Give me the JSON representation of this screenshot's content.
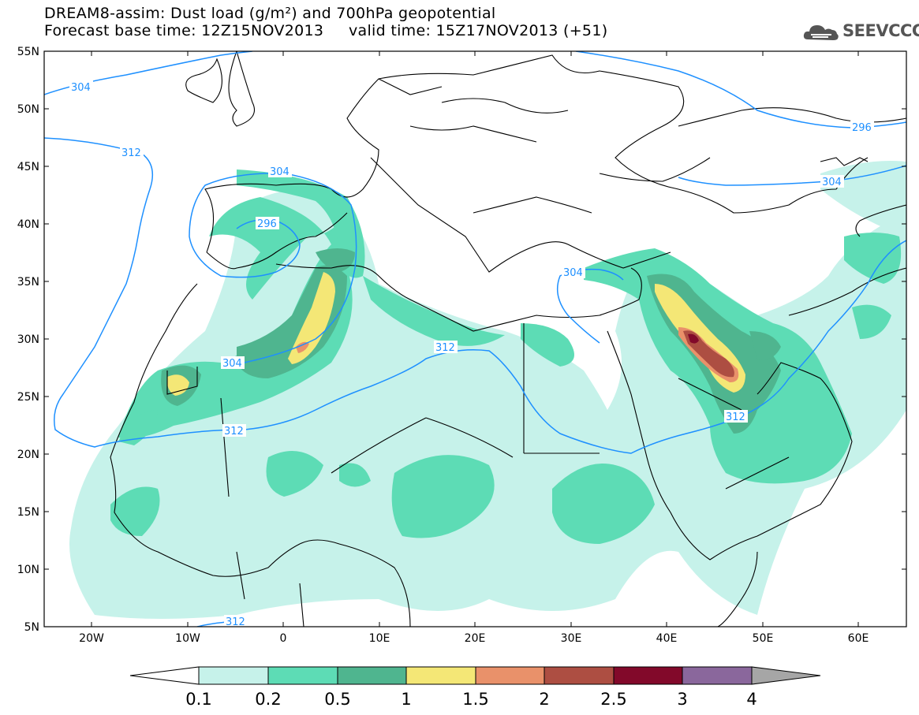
{
  "title": {
    "line1": "DREAM8-assim: Dust load (g/m²) and 700hPa geopotential",
    "line2": "Forecast base time: 12Z15NOV2013     valid time: 15Z17NOV2013 (+51)"
  },
  "logo": {
    "text": "SEEVCCC",
    "icon": "cloud-icon"
  },
  "map": {
    "lat_labels": [
      "55N",
      "50N",
      "45N",
      "40N",
      "35N",
      "30N",
      "25N",
      "20N",
      "15N",
      "10N",
      "5N"
    ],
    "lon_labels": [
      "20W",
      "10W",
      "0",
      "10E",
      "20E",
      "30E",
      "40E",
      "50E",
      "60E"
    ],
    "contour_labels": [
      "304",
      "296",
      "312",
      "304",
      "296",
      "304",
      "304",
      "312",
      "312",
      "304",
      "312",
      "312"
    ],
    "contour_color": "#1e90ff"
  },
  "colorbar": {
    "colors": [
      "#c6f2ea",
      "#5ddcb5",
      "#4fb58f",
      "#f4e776",
      "#e9916a",
      "#ad4e42",
      "#82092a",
      "#8a679c"
    ],
    "labels": [
      "0.1",
      "0.2",
      "0.5",
      "1",
      "1.5",
      "2",
      "2.5",
      "3",
      "4"
    ]
  }
}
